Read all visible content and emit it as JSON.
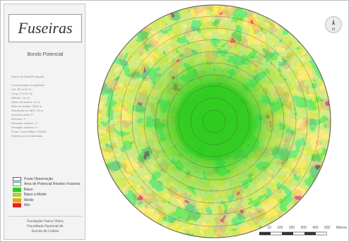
{
  "map": {
    "title": "Fuseiras",
    "subtitle": "Bondo Potencial",
    "info_lines": [
      "Dados de Base/Projecção",
      "",
      "Coordenadas Geográficas",
      "   Lat: 38°xx'xx\" N",
      "   Long: 9°xx'xx\" W",
      "Altitude: xxx m",
      "Altura da antena: xx m",
      "Raio de análise: 5000 m",
      "Resolução do MDT: 25 m",
      "Azimute inicial: 0°",
      "Intervalo: 1°",
      "Elevação mínima: -x°",
      "Elevação máxima: x°",
      "Fonte: Carta Militar 1:25000",
      "Sistema de coordenadas"
    ],
    "legend": [
      {
        "label": "Posto Observação",
        "color": "#ffffff",
        "border": "#5555aa"
      },
      {
        "label": "Área de Potencial Relativo Fuseiras",
        "color": "#ffffff",
        "border": "#55aa55"
      },
      {
        "label": "Baixo",
        "color": "#2ecc1f",
        "border": "#2ecc1f"
      },
      {
        "label": "Baixo a Médio",
        "color": "#a6d63a",
        "border": "#a6d63a"
      },
      {
        "label": "Médio",
        "color": "#f2a01c",
        "border": "#f2a01c"
      },
      {
        "label": "Alto",
        "color": "#e8231a",
        "border": "#e8231a"
      }
    ],
    "credits": [
      "Fundação Vasco Vieira",
      "Faculdade Nacional de",
      "Escola de Lisboa"
    ],
    "north_label": "N",
    "scale": {
      "ticks": [
        "0",
        "10",
        "100",
        "200",
        "300",
        "400",
        "500"
      ],
      "unit": "Metros"
    },
    "colors": {
      "low": "#2ecc1f",
      "low_med": "#a6d63a",
      "medium": "#f2a01c",
      "high": "#e8231a"
    }
  }
}
